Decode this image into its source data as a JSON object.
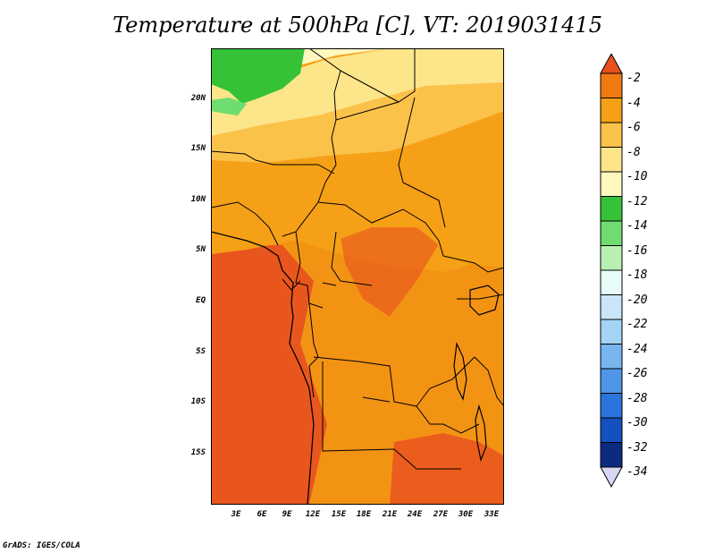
{
  "title": "Temperature at 500hPa [C], VT: 2019031415",
  "credit": "GrADS: IGES/COLA",
  "axes": {
    "lat_labels": [
      "20N",
      "15N",
      "10N",
      "5N",
      "EQ",
      "5S",
      "10S",
      "15S"
    ],
    "lon_labels": [
      "3E",
      "6E",
      "9E",
      "12E",
      "15E",
      "18E",
      "21E",
      "24E",
      "27E",
      "30E",
      "33E"
    ]
  },
  "legend": {
    "labels": [
      "-2",
      "-4",
      "-6",
      "-8",
      "-10",
      "-12",
      "-14",
      "-16",
      "-18",
      "-20",
      "-22",
      "-24",
      "-26",
      "-28",
      "-30",
      "-32",
      "-34"
    ],
    "colors": [
      "#e8501e",
      "#f07a12",
      "#f5a016",
      "#fbc24a",
      "#fde58a",
      "#fff7c0",
      "#36c236",
      "#6fdc6f",
      "#b8f0b2",
      "#e8fbf8",
      "#c8e6f8",
      "#a4d4f5",
      "#78b6ef",
      "#4e96e8",
      "#2a74dc",
      "#1450c0",
      "#0c2a80",
      "#d8d8f4"
    ]
  },
  "chart_data": {
    "type": "heatmap",
    "title": "Temperature at 500hPa [C], VT: 2019031415",
    "xlabel": "",
    "ylabel": "",
    "lon_range": [
      0,
      34
    ],
    "lat_range": [
      -19,
      25
    ],
    "units": "C",
    "color_levels": [
      -2,
      -4,
      -6,
      -8,
      -10,
      -12,
      -14,
      -16,
      -18,
      -20,
      -22,
      -24,
      -26,
      -28,
      -30,
      -32,
      -34
    ],
    "field_summary": [
      {
        "region": "far north (lat > 19N, west of 12E)",
        "value_range": [
          -14,
          -12
        ]
      },
      {
        "region": "northern band 15N-22N",
        "value_range": [
          -10,
          -8
        ]
      },
      {
        "region": "central band 5N-15N",
        "value_range": [
          -8,
          -4
        ]
      },
      {
        "region": "equatorial and southern region",
        "value_range": [
          -6,
          -2
        ]
      },
      {
        "region": "warm core Gabon / Congo coast",
        "value_range": [
          -4,
          -2
        ]
      }
    ]
  }
}
